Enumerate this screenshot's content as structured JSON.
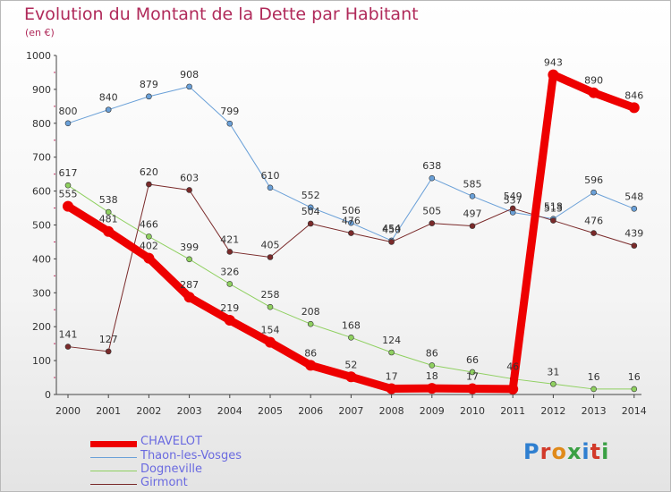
{
  "title": "Evolution du Montant de la Dette par Habitant",
  "unit": "(en €)",
  "logo": {
    "text": "Proxiti",
    "colors": [
      "#2f7fd0",
      "#d23a2a",
      "#e08a1a",
      "#3aa044",
      "#2f7fd0",
      "#d23a2a",
      "#3aa044"
    ]
  },
  "chart_data": {
    "type": "line",
    "title": "Evolution du Montant de la Dette par Habitant",
    "ylabel": "(en €)",
    "x": [
      "2000",
      "2001",
      "2002",
      "2003",
      "2004",
      "2005",
      "2006",
      "2007",
      "2008",
      "2009",
      "2010",
      "2011",
      "2012",
      "2013",
      "2014"
    ],
    "ylim": [
      0,
      1000
    ],
    "yticks": [
      0,
      100,
      200,
      300,
      400,
      500,
      600,
      700,
      800,
      900,
      1000
    ],
    "grid": false,
    "legend_position": "bottom-left",
    "series": [
      {
        "name": "CHAVELOT",
        "color": "#ee0000",
        "values": [
          555,
          481,
          402,
          287,
          219,
          154,
          86,
          52,
          17,
          18,
          17,
          16,
          943,
          890,
          846
        ],
        "labels": [
          "555",
          "481",
          "402",
          "287",
          "219",
          "154",
          "86",
          "52",
          "17",
          "18",
          "17",
          "",
          "943",
          "890",
          "846"
        ]
      },
      {
        "name": "Thaon-les-Vosges",
        "color": "#6aa0d8",
        "values": [
          800,
          840,
          879,
          908,
          799,
          610,
          552,
          506,
          454,
          638,
          585,
          537,
          518,
          596,
          548
        ],
        "labels": [
          "800",
          "840",
          "879",
          "908",
          "799",
          "610",
          "552",
          "506",
          "454",
          "638",
          "585",
          "537",
          "518",
          "596",
          "548"
        ]
      },
      {
        "name": "Dogneville",
        "color": "#8fd060",
        "values": [
          617,
          538,
          466,
          399,
          326,
          258,
          208,
          168,
          124,
          86,
          66,
          46,
          31,
          16,
          16
        ],
        "labels": [
          "617",
          "538",
          "466",
          "399",
          "326",
          "258",
          "208",
          "168",
          "124",
          "86",
          "66",
          "46",
          "31",
          "16",
          "16"
        ]
      },
      {
        "name": "Girmont",
        "color": "#7a2a2a",
        "values": [
          141,
          127,
          620,
          603,
          421,
          405,
          504,
          476,
          450,
          505,
          497,
          549,
          513,
          476,
          439
        ],
        "labels": [
          "141",
          "127",
          "620",
          "603",
          "421",
          "405",
          "504",
          "476",
          "450",
          "505",
          "497",
          "549",
          "513",
          "476",
          "439"
        ]
      }
    ]
  }
}
